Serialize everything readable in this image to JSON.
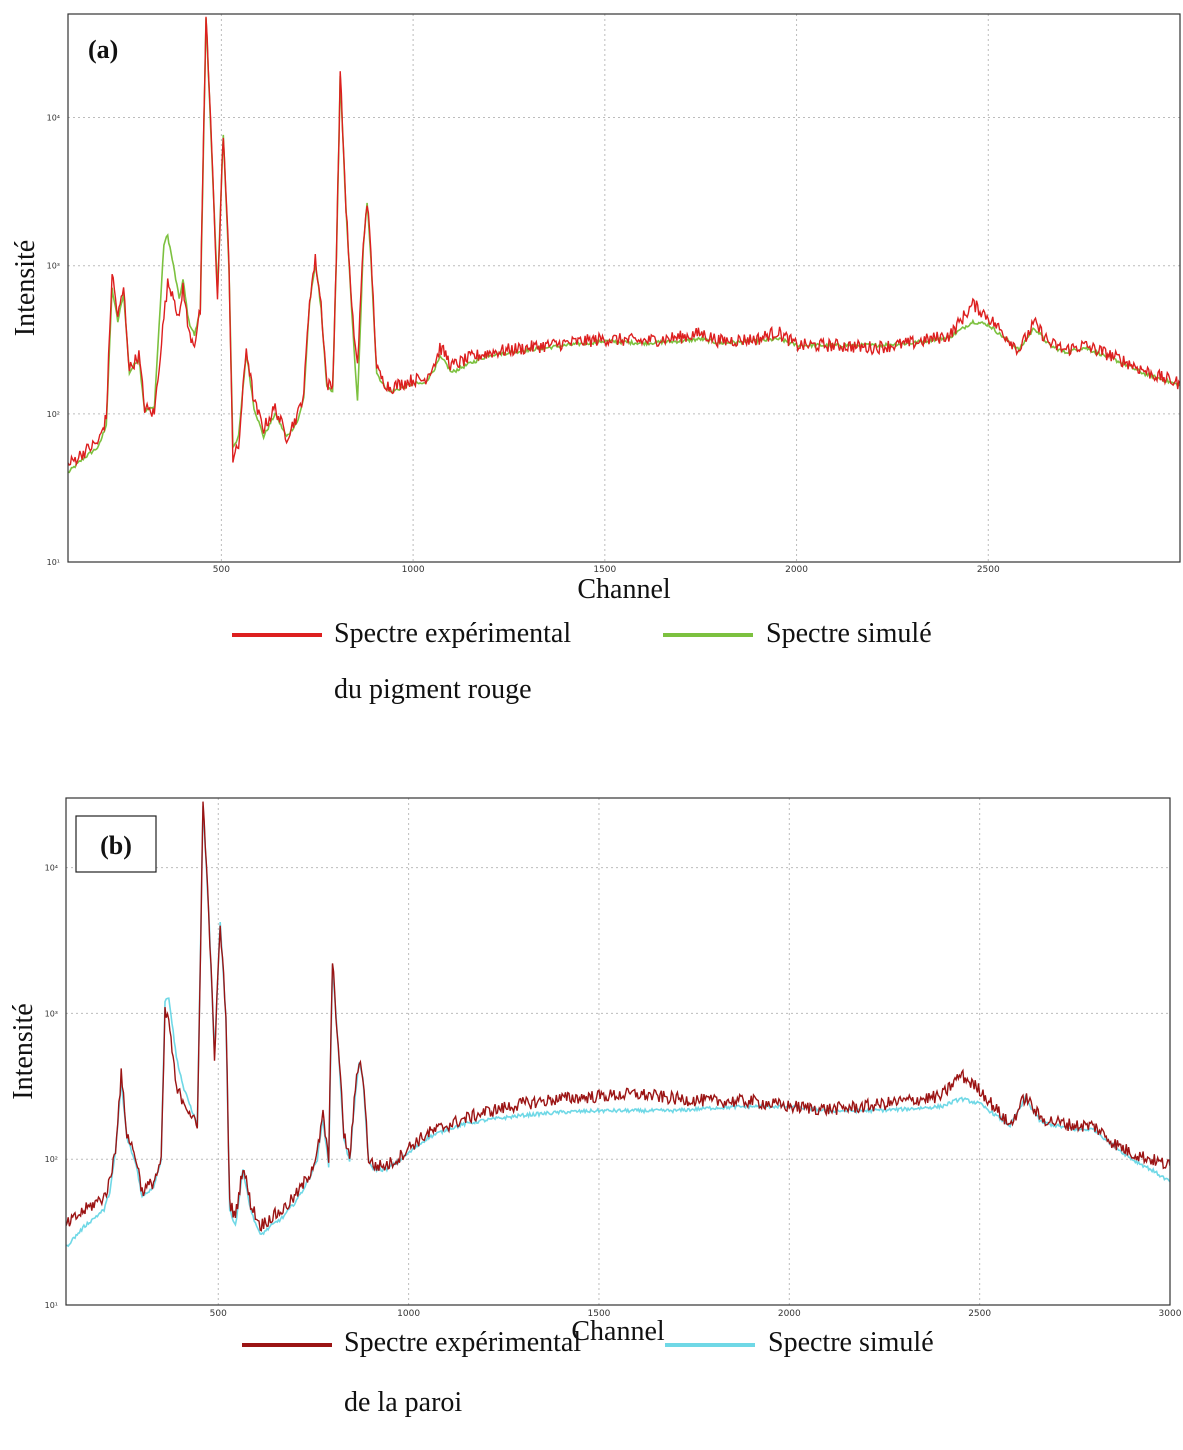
{
  "chart_data": [
    {
      "type": "line",
      "panel_label": "(a)",
      "xlabel": "Channel",
      "ylabel": "Intensité",
      "xlim": [
        100,
        3000
      ],
      "ylim": [
        10,
        50000
      ],
      "y_scale": "log",
      "grid": true,
      "x_ticks": [
        500,
        1000,
        1500,
        2000,
        2500
      ],
      "x_tick_labels": [
        "500",
        "1000",
        "1500",
        "2000",
        "2500"
      ],
      "y_ticks": [
        10,
        100,
        1000,
        10000
      ],
      "y_tick_labels": [
        "10¹",
        "10²",
        "10³",
        "10⁴"
      ],
      "legend": [
        {
          "label_line1": "Spectre expérimental",
          "label_line2": "du pigment rouge",
          "color": "#dd1f1f"
        },
        {
          "label_line1": "Spectre simulé",
          "label_line2": "",
          "color": "#7cc13f"
        }
      ],
      "series": [
        {
          "name": "Spectre expérimental du pigment rouge",
          "color": "#dd1f1f",
          "x": [
            100,
            140,
            180,
            200,
            215,
            230,
            245,
            260,
            285,
            300,
            325,
            350,
            360,
            375,
            390,
            400,
            415,
            430,
            445,
            460,
            475,
            490,
            505,
            520,
            530,
            545,
            565,
            585,
            610,
            640,
            670,
            700,
            715,
            730,
            745,
            760,
            775,
            790,
            800,
            810,
            825,
            840,
            855,
            870,
            880,
            890,
            905,
            920,
            940,
            970,
            1000,
            1030,
            1060,
            1070,
            1085,
            1100,
            1150,
            1200,
            1300,
            1400,
            1500,
            1600,
            1700,
            1750,
            1800,
            1900,
            1950,
            1970,
            2000,
            2100,
            2200,
            2300,
            2400,
            2460,
            2500,
            2580,
            2620,
            2660,
            2700,
            2750,
            2800,
            2850,
            2900,
            2940,
            2970,
            3000
          ],
          "y": [
            45,
            55,
            65,
            95,
            900,
            450,
            700,
            200,
            250,
            110,
            100,
            450,
            750,
            650,
            420,
            740,
            350,
            300,
            500,
            50000,
            6000,
            600,
            8000,
            1000,
            50,
            60,
            280,
            120,
            80,
            110,
            70,
            100,
            140,
            600,
            1100,
            550,
            160,
            150,
            1200,
            20000,
            2500,
            500,
            210,
            1400,
            2800,
            1200,
            200,
            170,
            150,
            160,
            170,
            170,
            230,
            280,
            250,
            210,
            240,
            260,
            280,
            300,
            320,
            310,
            330,
            350,
            310,
            320,
            360,
            330,
            290,
            290,
            280,
            300,
            340,
            550,
            450,
            270,
            410,
            300,
            270,
            290,
            260,
            230,
            200,
            180,
            170,
            160
          ]
        },
        {
          "name": "Spectre simulé",
          "color": "#7cc13f",
          "x": [
            100,
            140,
            180,
            200,
            215,
            230,
            245,
            260,
            285,
            300,
            325,
            350,
            360,
            375,
            390,
            400,
            415,
            430,
            445,
            460,
            475,
            490,
            505,
            520,
            530,
            545,
            565,
            585,
            610,
            640,
            670,
            700,
            715,
            730,
            745,
            760,
            775,
            790,
            800,
            810,
            825,
            840,
            855,
            870,
            880,
            890,
            905,
            920,
            940,
            970,
            1000,
            1030,
            1060,
            1070,
            1085,
            1100,
            1150,
            1200,
            1300,
            1400,
            1500,
            1600,
            1700,
            1750,
            1800,
            1900,
            1950,
            1970,
            2000,
            2100,
            2200,
            2300,
            2400,
            2460,
            2500,
            2580,
            2620,
            2660,
            2700,
            2750,
            2800,
            2850,
            2900,
            2940,
            2970,
            3000
          ],
          "y": [
            40,
            50,
            60,
            85,
            700,
            420,
            650,
            190,
            240,
            105,
            110,
            1400,
            1600,
            1000,
            600,
            800,
            420,
            340,
            500,
            46000,
            5800,
            650,
            7800,
            950,
            60,
            70,
            260,
            110,
            70,
            100,
            70,
            90,
            130,
            550,
            1050,
            520,
            150,
            140,
            1100,
            19000,
            2400,
            480,
            120,
            1300,
            2700,
            1100,
            190,
            160,
            140,
            150,
            160,
            160,
            210,
            240,
            220,
            190,
            220,
            250,
            270,
            290,
            310,
            300,
            310,
            320,
            300,
            310,
            320,
            310,
            290,
            290,
            290,
            300,
            330,
            420,
            400,
            270,
            380,
            290,
            260,
            280,
            250,
            220,
            190,
            175,
            165,
            155
          ]
        }
      ]
    },
    {
      "type": "line",
      "panel_label": "(b)",
      "xlabel": "Channel",
      "ylabel": "Intensité",
      "xlim": [
        100,
        3000
      ],
      "ylim": [
        10,
        30000
      ],
      "y_scale": "log",
      "grid": true,
      "x_ticks": [
        500,
        1000,
        1500,
        2000,
        2500,
        3000
      ],
      "x_tick_labels": [
        "500",
        "1000",
        "1500",
        "2000",
        "2500",
        "3000"
      ],
      "y_ticks": [
        10,
        100,
        1000,
        10000
      ],
      "y_tick_labels": [
        "10¹",
        "10²",
        "10³",
        "10⁴"
      ],
      "legend": [
        {
          "label_line1": "Spectre expérimental",
          "label_line2": "de la paroi",
          "color": "#9b1414"
        },
        {
          "label_line1": "Spectre simulé",
          "label_line2": "",
          "color": "#6fd8e6"
        }
      ],
      "series": [
        {
          "name": "Spectre expérimental de la paroi",
          "color": "#9b1414",
          "x": [
            100,
            150,
            200,
            215,
            230,
            245,
            260,
            285,
            300,
            330,
            350,
            360,
            370,
            390,
            410,
            430,
            445,
            460,
            475,
            490,
            505,
            520,
            530,
            545,
            565,
            585,
            610,
            640,
            670,
            700,
            720,
            740,
            760,
            775,
            790,
            800,
            815,
            830,
            845,
            860,
            870,
            880,
            895,
            910,
            940,
            970,
            1000,
            1050,
            1100,
            1150,
            1200,
            1300,
            1400,
            1500,
            1600,
            1700,
            1800,
            1900,
            2000,
            2100,
            2200,
            2300,
            2400,
            2450,
            2500,
            2580,
            2620,
            2660,
            2700,
            2750,
            2800,
            2850,
            2900,
            2950,
            3000
          ],
          "y": [
            35,
            45,
            55,
            70,
            120,
            380,
            150,
            100,
            60,
            70,
            95,
            1000,
            900,
            300,
            250,
            200,
            160,
            28000,
            5000,
            500,
            4000,
            1000,
            50,
            40,
            90,
            50,
            35,
            40,
            45,
            55,
            65,
            80,
            110,
            200,
            100,
            2300,
            600,
            150,
            100,
            300,
            480,
            380,
            100,
            90,
            90,
            100,
            120,
            150,
            170,
            190,
            210,
            240,
            260,
            270,
            280,
            260,
            250,
            250,
            230,
            220,
            230,
            250,
            270,
            380,
            300,
            170,
            270,
            190,
            180,
            170,
            170,
            130,
            110,
            100,
            90
          ]
        },
        {
          "name": "Spectre simulé",
          "color": "#6fd8e6",
          "x": [
            100,
            150,
            200,
            215,
            230,
            245,
            260,
            285,
            300,
            330,
            350,
            360,
            370,
            390,
            410,
            430,
            445,
            460,
            475,
            490,
            505,
            520,
            530,
            545,
            565,
            585,
            610,
            640,
            670,
            700,
            720,
            740,
            760,
            775,
            790,
            800,
            815,
            830,
            845,
            860,
            870,
            880,
            895,
            910,
            940,
            970,
            1000,
            1050,
            1100,
            1150,
            1200,
            1300,
            1400,
            1500,
            1600,
            1700,
            1800,
            1900,
            2000,
            2100,
            2200,
            2300,
            2400,
            2450,
            2500,
            2580,
            2620,
            2660,
            2700,
            2750,
            2800,
            2850,
            2900,
            2950,
            3000
          ],
          "y": [
            25,
            35,
            45,
            60,
            110,
            340,
            140,
            90,
            55,
            65,
            100,
            1200,
            1300,
            500,
            300,
            220,
            170,
            27000,
            4800,
            520,
            4200,
            950,
            45,
            35,
            85,
            45,
            30,
            35,
            40,
            50,
            60,
            75,
            100,
            190,
            90,
            2200,
            580,
            140,
            95,
            280,
            450,
            360,
            95,
            85,
            85,
            95,
            110,
            140,
            160,
            175,
            185,
            200,
            210,
            215,
            215,
            215,
            225,
            230,
            230,
            215,
            215,
            220,
            230,
            260,
            240,
            170,
            260,
            180,
            170,
            160,
            160,
            125,
            100,
            85,
            70
          ]
        }
      ]
    }
  ]
}
